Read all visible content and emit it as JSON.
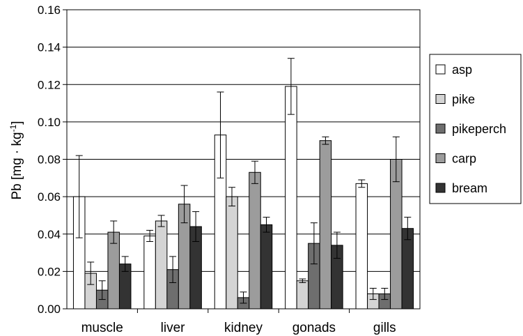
{
  "chart_data": {
    "type": "bar",
    "ylabel": "Pb [mg · kg",
    "ylabel_sup": "-1",
    "ylabel_end": "]",
    "ylim": [
      0,
      0.16
    ],
    "yticks": [
      "0.00",
      "0.02",
      "0.04",
      "0.06",
      "0.08",
      "0.10",
      "0.12",
      "0.14",
      "0.16"
    ],
    "categories": [
      "muscle",
      "liver",
      "kidney",
      "gonads",
      "gills"
    ],
    "legend_position": "right",
    "series": [
      {
        "name": "asp",
        "color": "#ffffff",
        "values": [
          0.06,
          0.039,
          0.093,
          0.119,
          0.067
        ],
        "errors": [
          0.022,
          0.003,
          0.023,
          0.015,
          0.002
        ]
      },
      {
        "name": "pike",
        "color": "#d4d4d4",
        "values": [
          0.019,
          0.047,
          0.06,
          0.015,
          0.008
        ],
        "errors": [
          0.006,
          0.003,
          0.005,
          0.001,
          0.003
        ]
      },
      {
        "name": "pikeperch",
        "color": "#6e6e6e",
        "values": [
          0.01,
          0.021,
          0.006,
          0.035,
          0.008
        ],
        "errors": [
          0.005,
          0.007,
          0.003,
          0.011,
          0.003
        ]
      },
      {
        "name": "carp",
        "color": "#9c9c9c",
        "values": [
          0.041,
          0.056,
          0.073,
          0.09,
          0.08
        ],
        "errors": [
          0.006,
          0.01,
          0.006,
          0.002,
          0.012
        ]
      },
      {
        "name": "bream",
        "color": "#333333",
        "values": [
          0.024,
          0.044,
          0.045,
          0.034,
          0.043
        ],
        "errors": [
          0.004,
          0.008,
          0.004,
          0.007,
          0.006
        ]
      }
    ]
  }
}
